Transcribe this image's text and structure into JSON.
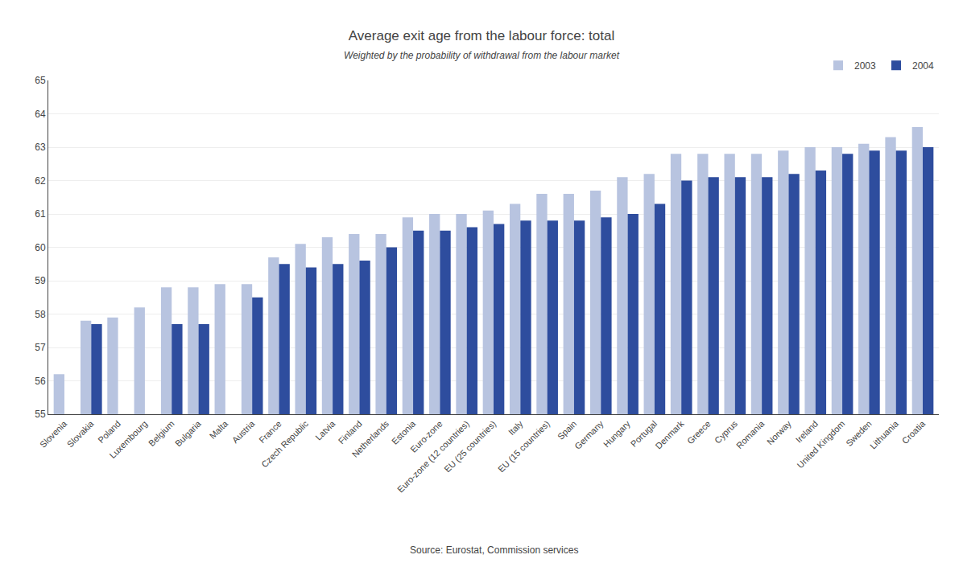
{
  "chart_data": {
    "type": "bar",
    "title": "Average exit age from the labour force: total",
    "subtitle": "Weighted by the probability of withdrawal from the labour market",
    "annotations": [
      "Source: Eurostat, Commission services"
    ],
    "categories": [
      "Slovenia",
      "Slovakia",
      "Poland",
      "Luxembourg",
      "Belgium",
      "Bulgaria",
      "Malta",
      "Austria",
      "France",
      "Czech Republic",
      "Latvia",
      "Finland",
      "Netherlands",
      "Estonia",
      "Euro-zone",
      "Euro-zone (12 countries)",
      "EU (25 countries)",
      "Italy",
      "EU (15 countries)",
      "Spain",
      "Germany",
      "Hungary",
      "Portugal",
      "Denmark",
      "Greece",
      "Cyprus",
      "Romania",
      "Norway",
      "Ireland",
      "United Kingdom",
      "Sweden",
      "Lithuania",
      "Croatia"
    ],
    "series": [
      {
        "name": "2003",
        "color": "#b8c4e0",
        "values": [
          56.2,
          57.8,
          57.9,
          58.2,
          58.8,
          58.8,
          58.9,
          58.9,
          59.7,
          60.1,
          60.3,
          60.4,
          60.4,
          60.9,
          61.0,
          61.0,
          61.1,
          61.3,
          61.6,
          61.6,
          61.7,
          62.1,
          62.2,
          62.8,
          62.8,
          62.8,
          62.8,
          62.9,
          63.0,
          63.0,
          63.1,
          63.3,
          63.6
        ]
      },
      {
        "name": "2004",
        "color": "#2e4d9e",
        "values": [
          null,
          57.7,
          null,
          null,
          57.7,
          57.7,
          null,
          58.5,
          59.5,
          59.4,
          59.5,
          59.6,
          60.0,
          60.5,
          60.5,
          60.6,
          60.7,
          60.8,
          60.8,
          60.8,
          60.9,
          61.0,
          61.3,
          62.0,
          62.1,
          62.1,
          62.1,
          62.2,
          62.3,
          62.8,
          62.9,
          62.9,
          63.0
        ]
      }
    ],
    "ylim": [
      55,
      65
    ],
    "yticks": [
      55,
      56,
      57,
      58,
      59,
      60,
      61,
      62,
      63,
      64,
      65
    ],
    "grid": true,
    "legend": "upper right"
  }
}
